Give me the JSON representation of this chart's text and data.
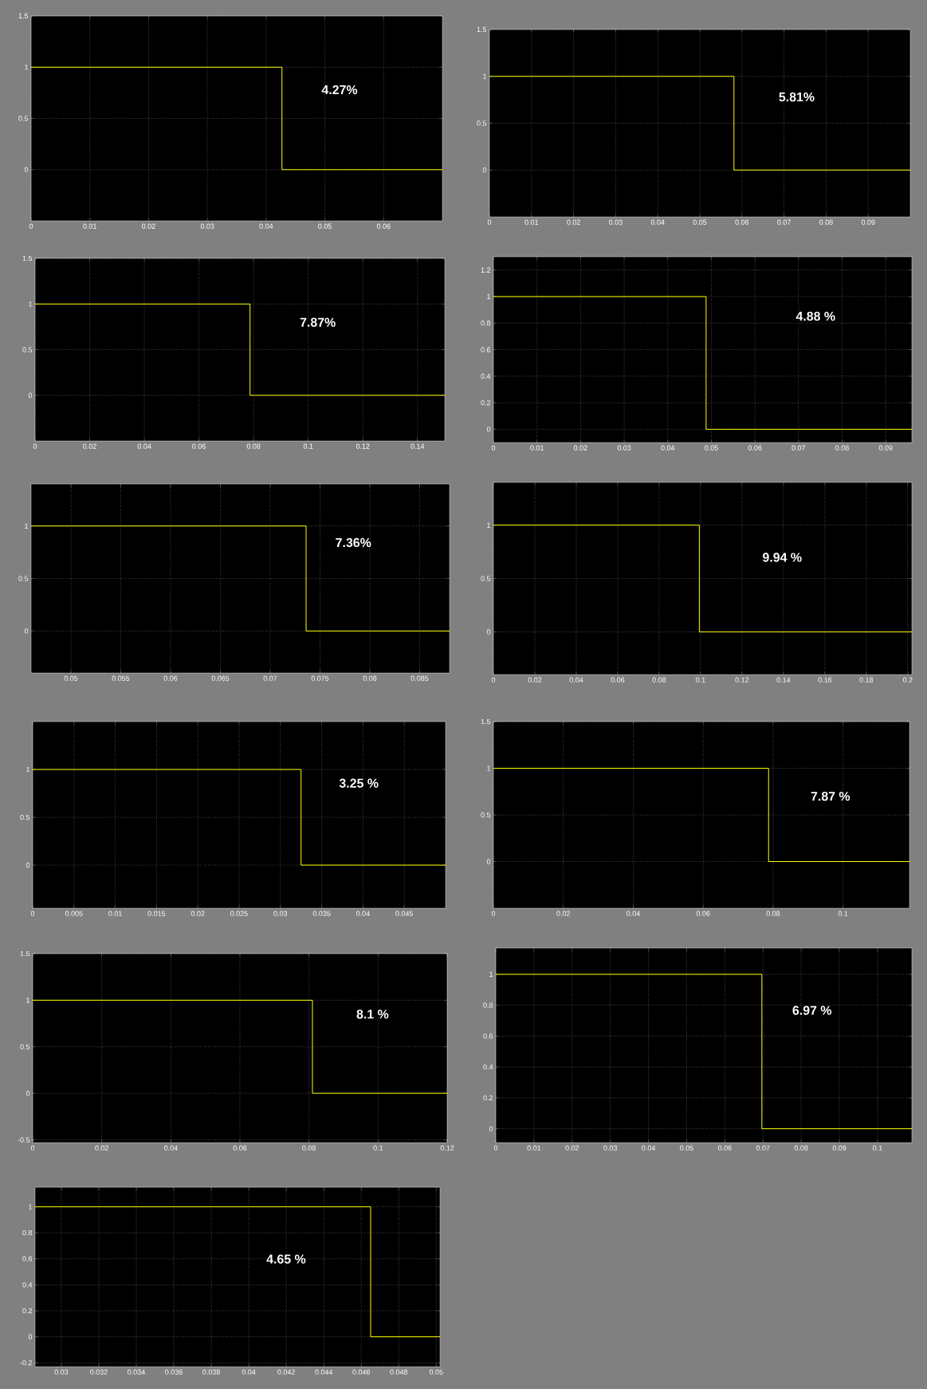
{
  "chart_data": [
    {
      "type": "step",
      "x": [
        0,
        0.0427,
        0.07
      ],
      "values": [
        1,
        0,
        0
      ],
      "color": "#ffff00",
      "xlim": [
        0,
        0.07
      ],
      "xticks": [
        0,
        0.01,
        0.02,
        0.03,
        0.04,
        0.05,
        0.06
      ],
      "ylim": [
        -0.5,
        1.5
      ],
      "yticks": [
        0,
        0.5,
        1,
        1.5
      ],
      "grid": true,
      "annotations": [
        "4.27%"
      ]
    },
    {
      "type": "step",
      "x": [
        0,
        0.0581,
        0.1
      ],
      "values": [
        1,
        0,
        0
      ],
      "color": "#ffff00",
      "xlim": [
        0,
        0.1
      ],
      "xticks": [
        0,
        0.01,
        0.02,
        0.03,
        0.04,
        0.05,
        0.06,
        0.07,
        0.08,
        0.09
      ],
      "ylim": [
        -0.5,
        1.5
      ],
      "yticks": [
        0,
        0.5,
        1,
        1.5
      ],
      "grid": true,
      "annotations": [
        "5.81%"
      ]
    },
    {
      "type": "step",
      "x": [
        0,
        0.0787,
        0.15
      ],
      "values": [
        1,
        0,
        0
      ],
      "color": "#ffff00",
      "xlim": [
        0,
        0.15
      ],
      "xticks": [
        0,
        0.02,
        0.04,
        0.06,
        0.08,
        0.1,
        0.12,
        0.14
      ],
      "ylim": [
        -0.5,
        1.5
      ],
      "yticks": [
        0,
        0.5,
        1,
        1.5
      ],
      "grid": true,
      "annotations": [
        "7.87%"
      ]
    },
    {
      "type": "step",
      "x": [
        0,
        0.0488,
        0.096
      ],
      "values": [
        1,
        0,
        0
      ],
      "color": "#ffff00",
      "xlim": [
        0,
        0.096
      ],
      "xticks": [
        0,
        0.01,
        0.02,
        0.03,
        0.04,
        0.05,
        0.06,
        0.07,
        0.08,
        0.09
      ],
      "ylim": [
        -0.1,
        1.3
      ],
      "yticks": [
        0,
        0.2,
        0.4,
        0.6,
        0.8,
        1,
        1.2
      ],
      "grid": true,
      "annotations": [
        "4.88 %"
      ]
    },
    {
      "type": "step",
      "x": [
        0.046,
        0.0736,
        0.088
      ],
      "values": [
        1,
        0,
        0
      ],
      "color": "#ffff00",
      "xlim": [
        0.046,
        0.088
      ],
      "xticks": [
        0.05,
        0.055,
        0.06,
        0.065,
        0.07,
        0.075,
        0.08,
        0.085
      ],
      "ylim": [
        -0.4,
        1.4
      ],
      "yticks": [
        0,
        0.5,
        1
      ],
      "grid": true,
      "annotations": [
        "7.36%"
      ]
    },
    {
      "type": "step",
      "x": [
        0,
        0.0994,
        0.202
      ],
      "values": [
        1,
        0,
        0
      ],
      "color": "#ffff00",
      "xlim": [
        0,
        0.202
      ],
      "xticks": [
        0,
        0.02,
        0.04,
        0.06,
        0.08,
        0.1,
        0.12,
        0.14,
        0.16,
        0.18,
        0.2
      ],
      "ylim": [
        -0.4,
        1.4
      ],
      "yticks": [
        0,
        0.5,
        1
      ],
      "grid": true,
      "annotations": [
        "9.94 %"
      ]
    },
    {
      "type": "step",
      "x": [
        0,
        0.0325,
        0.05
      ],
      "values": [
        1,
        0,
        0
      ],
      "color": "#ffff00",
      "xlim": [
        0,
        0.05
      ],
      "xticks": [
        0,
        0.005,
        0.01,
        0.015,
        0.02,
        0.025,
        0.03,
        0.035,
        0.04,
        0.045
      ],
      "ylim": [
        -0.45,
        1.5
      ],
      "yticks": [
        0,
        0.5,
        1
      ],
      "grid": true,
      "annotations": [
        "3.25 %"
      ]
    },
    {
      "type": "step",
      "x": [
        0,
        0.0787,
        0.119
      ],
      "values": [
        1,
        0,
        0
      ],
      "color": "#ffff00",
      "xlim": [
        0,
        0.119
      ],
      "xticks": [
        0,
        0.02,
        0.04,
        0.06,
        0.08,
        0.1
      ],
      "ylim": [
        -0.5,
        1.5
      ],
      "yticks": [
        0,
        0.5,
        1,
        1.5
      ],
      "grid": true,
      "annotations": [
        "7.87 %"
      ]
    },
    {
      "type": "step",
      "x": [
        0,
        0.081,
        0.12
      ],
      "values": [
        1,
        0,
        0
      ],
      "color": "#ffff00",
      "xlim": [
        0,
        0.12
      ],
      "xticks": [
        0,
        0.02,
        0.04,
        0.06,
        0.08,
        0.1,
        0.12
      ],
      "ylim": [
        -0.53,
        1.5
      ],
      "yticks": [
        -0.5,
        0,
        0.5,
        1,
        1.5
      ],
      "grid": true,
      "annotations": [
        "8.1 %"
      ]
    },
    {
      "type": "step",
      "x": [
        0,
        0.0697,
        0.109
      ],
      "values": [
        1,
        0,
        0
      ],
      "color": "#ffff00",
      "xlim": [
        0,
        0.109
      ],
      "xticks": [
        0,
        0.01,
        0.02,
        0.03,
        0.04,
        0.05,
        0.06,
        0.07,
        0.08,
        0.09,
        0.1
      ],
      "ylim": [
        -0.09,
        1.17
      ],
      "yticks": [
        0,
        0.2,
        0.4,
        0.6,
        0.8,
        1
      ],
      "grid": true,
      "annotations": [
        "6.97 %"
      ]
    },
    {
      "type": "step",
      "x": [
        0.0286,
        0.0465,
        0.0502
      ],
      "values": [
        1,
        0,
        0
      ],
      "color": "#ffff00",
      "xlim": [
        0.0286,
        0.0502
      ],
      "xticks": [
        0.03,
        0.032,
        0.034,
        0.036,
        0.038,
        0.04,
        0.042,
        0.044,
        0.046,
        0.048,
        0.05
      ],
      "ylim": [
        -0.23,
        1.15
      ],
      "yticks": [
        -0.2,
        0,
        0.2,
        0.4,
        0.6,
        0.8,
        1
      ],
      "grid": true,
      "annotations": [
        "4.65 %"
      ]
    }
  ]
}
